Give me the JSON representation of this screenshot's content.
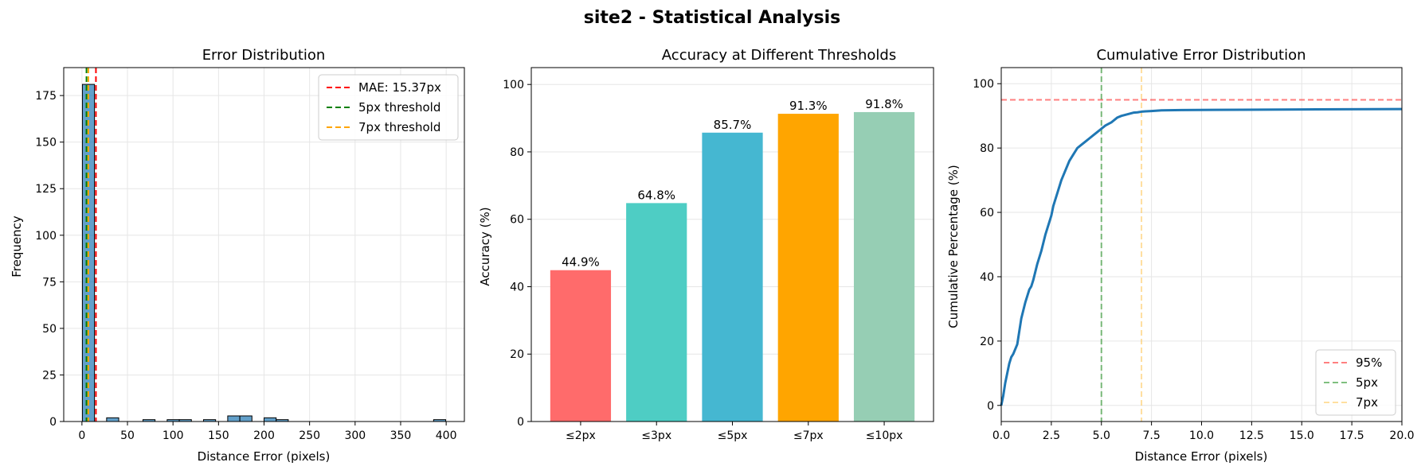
{
  "figure": {
    "title": "site2 - Statistical Analysis"
  },
  "chart_data": [
    {
      "type": "bar",
      "subtype": "histogram",
      "title": "Error Distribution",
      "xlabel": "Distance Error (pixels)",
      "ylabel": "Frequency",
      "xlim": [
        -20,
        420
      ],
      "ylim": [
        0,
        190
      ],
      "xticks": [
        0,
        50,
        100,
        150,
        200,
        250,
        300,
        350,
        400
      ],
      "yticks": [
        0,
        25,
        50,
        75,
        100,
        125,
        150,
        175
      ],
      "grid": true,
      "bar_color": "#1f77b4",
      "bins": [
        {
          "x0": 0.5,
          "x1": 13.8,
          "count": 181
        },
        {
          "x0": 27.1,
          "x1": 40.4,
          "count": 2
        },
        {
          "x0": 67.0,
          "x1": 80.3,
          "count": 1
        },
        {
          "x0": 93.6,
          "x1": 106.9,
          "count": 1
        },
        {
          "x0": 106.9,
          "x1": 120.2,
          "count": 1
        },
        {
          "x0": 133.5,
          "x1": 146.8,
          "count": 1
        },
        {
          "x0": 160.1,
          "x1": 173.4,
          "count": 3
        },
        {
          "x0": 173.4,
          "x1": 186.7,
          "count": 3
        },
        {
          "x0": 200.0,
          "x1": 213.3,
          "count": 2
        },
        {
          "x0": 213.3,
          "x1": 226.6,
          "count": 1
        },
        {
          "x0": 386.2,
          "x1": 399.5,
          "count": 1
        }
      ],
      "lines": [
        {
          "label": "MAE: 15.37px",
          "x": 15.37,
          "color": "#ff0000"
        },
        {
          "label": "5px threshold",
          "x": 5,
          "color": "#008000"
        },
        {
          "label": "7px threshold",
          "x": 7,
          "color": "#ffa500"
        }
      ],
      "legend": "top-right"
    },
    {
      "type": "bar",
      "title": "Accuracy at Different Thresholds",
      "xlabel": "",
      "ylabel": "Accuracy (%)",
      "ylim": [
        0,
        105
      ],
      "yticks": [
        0,
        20,
        40,
        60,
        80,
        100
      ],
      "grid": true,
      "categories": [
        "≤2px",
        "≤3px",
        "≤5px",
        "≤7px",
        "≤10px"
      ],
      "values": [
        44.9,
        64.8,
        85.7,
        91.3,
        91.8
      ],
      "value_labels": [
        "44.9%",
        "64.8%",
        "85.7%",
        "91.3%",
        "91.8%"
      ],
      "colors": [
        "#ff6b6b",
        "#4ecdc4",
        "#45b7d1",
        "#ffa500",
        "#96ceb4"
      ]
    },
    {
      "type": "line",
      "title": "Cumulative Error Distribution",
      "xlabel": "Distance Error (pixels)",
      "ylabel": "Cumulative Percentage (%)",
      "xlim": [
        0,
        20
      ],
      "ylim": [
        -5,
        105
      ],
      "xticks": [
        "0.0",
        "2.5",
        "5.0",
        "7.5",
        "10.0",
        "12.5",
        "15.0",
        "17.5",
        "20.0"
      ],
      "yticks": [
        0,
        20,
        40,
        60,
        80,
        100
      ],
      "grid": true,
      "series": [
        {
          "color": "#1f77b4",
          "x": [
            0,
            0.1,
            0.2,
            0.3,
            0.4,
            0.5,
            0.6,
            0.8,
            1.0,
            1.2,
            1.4,
            1.5,
            1.6,
            1.8,
            2.0,
            2.2,
            2.4,
            2.5,
            2.6,
            2.8,
            3.0,
            3.2,
            3.4,
            3.6,
            3.8,
            4.0,
            4.2,
            4.4,
            4.6,
            4.8,
            5.0,
            5.2,
            5.5,
            5.8,
            6.0,
            6.3,
            6.6,
            6.8,
            7.0,
            7.2,
            7.5,
            8.0,
            9.0,
            12.0,
            15.0,
            20.0
          ],
          "y": [
            0,
            3,
            7,
            10,
            13,
            15,
            16,
            19,
            27,
            32,
            36,
            37,
            39,
            44,
            48,
            53,
            57,
            59,
            62,
            66,
            70,
            73,
            76,
            78,
            80,
            81,
            82,
            83,
            84,
            85,
            86,
            87,
            88,
            89.5,
            90,
            90.5,
            91,
            91.1,
            91.3,
            91.4,
            91.5,
            91.7,
            91.8,
            91.9,
            92.0,
            92.1
          ]
        }
      ],
      "reference_lines": [
        {
          "label": "95%",
          "orientation": "horizontal",
          "value": 95,
          "color": "#ff0000"
        },
        {
          "label": "5px",
          "orientation": "vertical",
          "value": 5,
          "color": "#008000"
        },
        {
          "label": "7px",
          "orientation": "vertical",
          "value": 7,
          "color": "#ffc040"
        }
      ],
      "legend": "bottom-right"
    }
  ]
}
